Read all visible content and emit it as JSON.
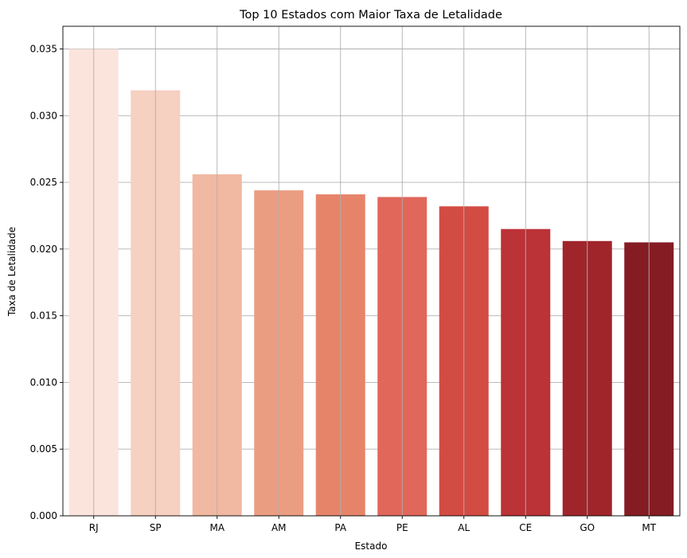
{
  "chart_data": {
    "type": "bar",
    "title": "Top 10 Estados com Maior Taxa de Letalidade",
    "xlabel": "Estado",
    "ylabel": "Taxa de Letalidade",
    "categories": [
      "RJ",
      "SP",
      "MA",
      "AM",
      "PA",
      "PE",
      "AL",
      "CE",
      "GO",
      "MT"
    ],
    "values": [
      0.035,
      0.0319,
      0.0256,
      0.0244,
      0.0241,
      0.0239,
      0.0232,
      0.0215,
      0.0206,
      0.0205
    ],
    "colors": [
      "#fbe4dc",
      "#f6d0c0",
      "#f1b8a2",
      "#eb9d82",
      "#e6846a",
      "#e0675a",
      "#d34c44",
      "#bb3237",
      "#9f252b",
      "#851c23"
    ],
    "yticks": [
      0.0,
      0.005,
      0.01,
      0.015,
      0.02,
      0.025,
      0.03,
      0.035
    ],
    "ytick_labels": [
      "0.000",
      "0.005",
      "0.010",
      "0.015",
      "0.020",
      "0.025",
      "0.030",
      "0.035"
    ],
    "ylim": [
      0,
      0.0367
    ],
    "grid": true
  }
}
